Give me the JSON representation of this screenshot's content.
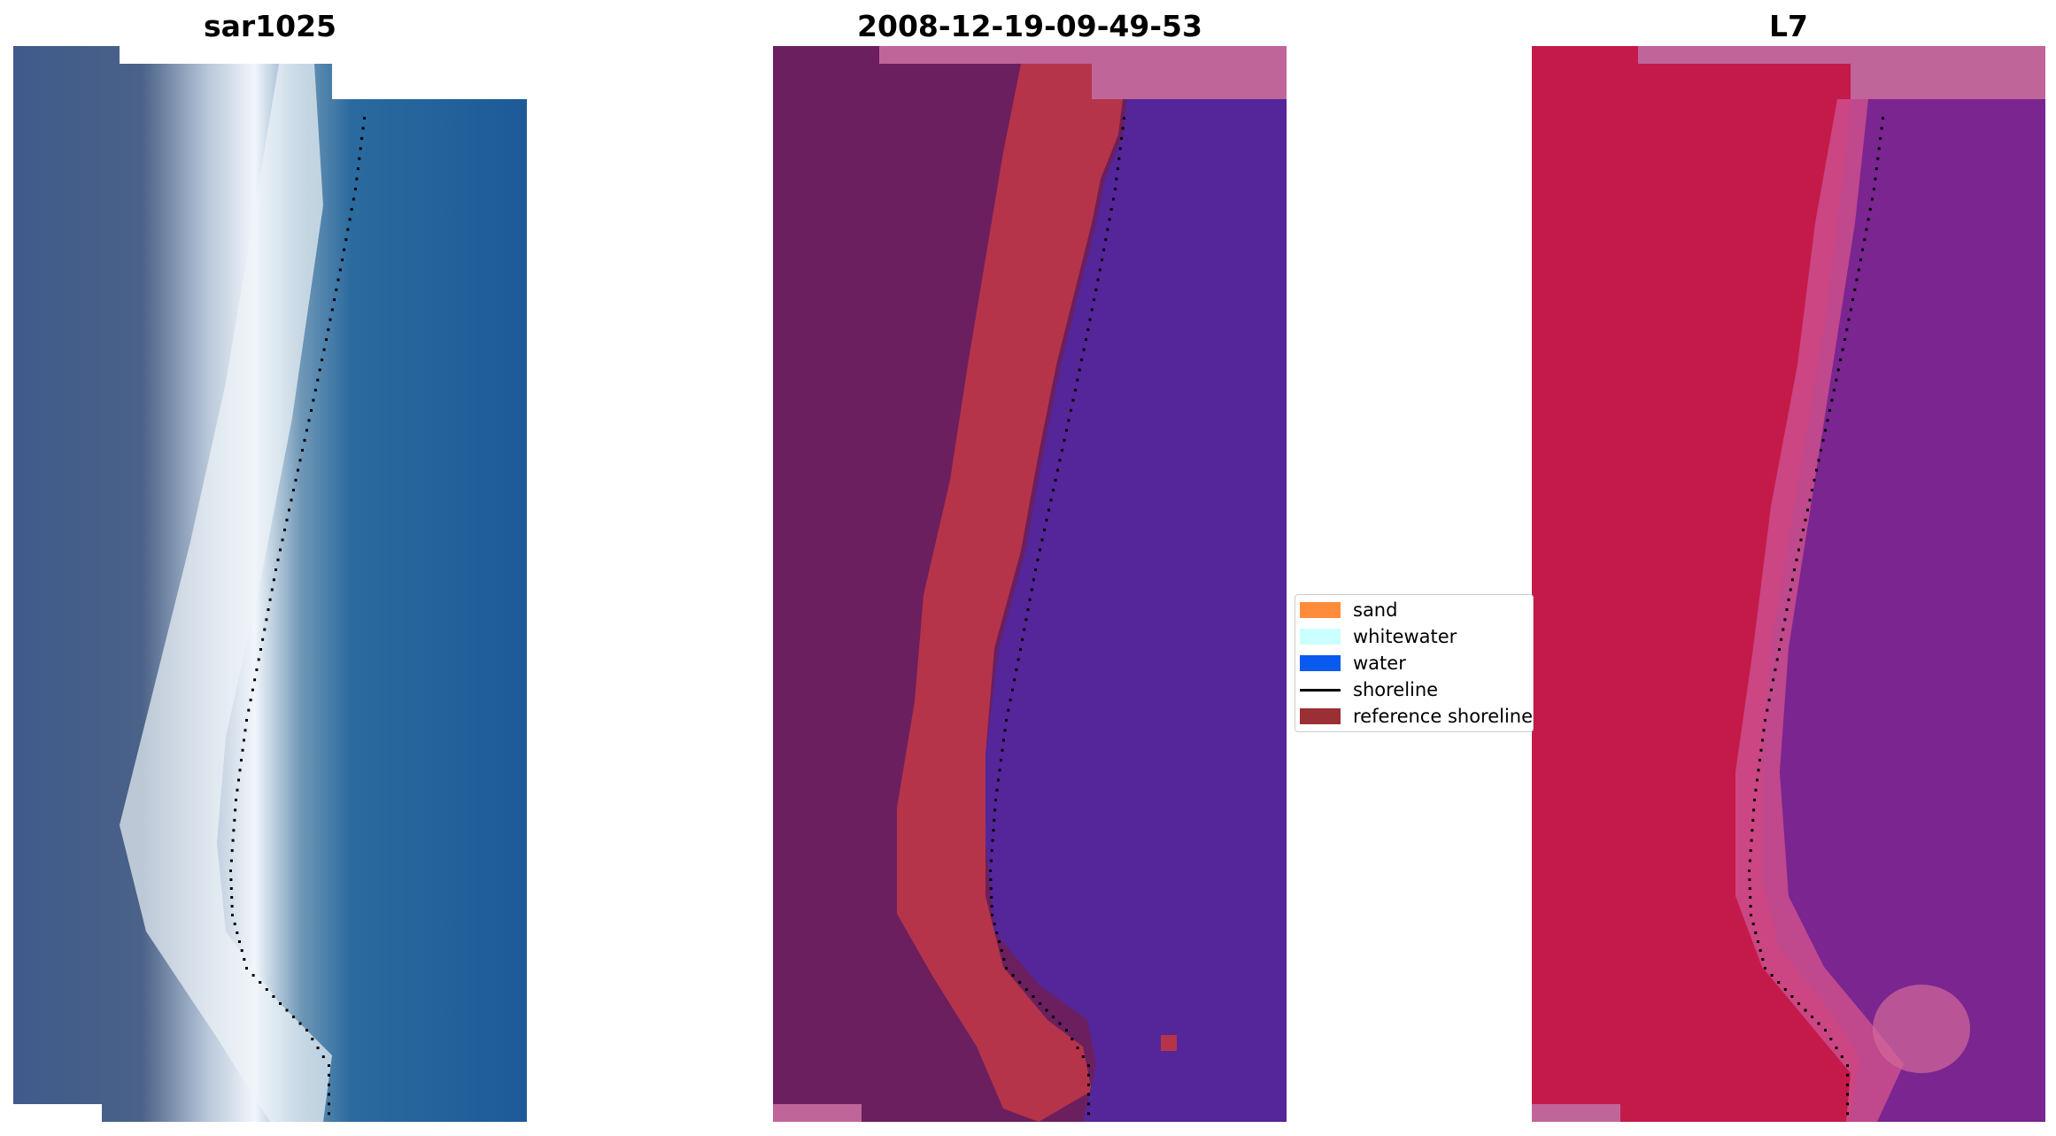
{
  "panels": [
    {
      "title": "sar1025",
      "kind": "rgb"
    },
    {
      "title": "2008-12-19-09-49-53",
      "kind": "classified"
    },
    {
      "title": "L7",
      "kind": "falsecolor"
    }
  ],
  "legend": {
    "items": [
      {
        "label": "sand",
        "color": "#ff8c3a",
        "type": "patch"
      },
      {
        "label": "whitewater",
        "color": "#ccffff",
        "type": "patch"
      },
      {
        "label": "water",
        "color": "#0a5af0",
        "type": "patch"
      },
      {
        "label": "shoreline",
        "color": "#000000",
        "type": "line"
      },
      {
        "label": "reference shoreline",
        "color": "#9a2f36",
        "type": "patch"
      }
    ]
  },
  "colors": {
    "rgb_land": "#3f5a8c",
    "rgb_water": "#1f5b96",
    "rgb_surf": "#e8eef6",
    "class_land": "#6b1f5e",
    "class_sand": "#b5344a",
    "class_water": "#55259a",
    "class_nodata": "#c0659a",
    "fc_land": "#c41a4a",
    "fc_water": "#7a2590",
    "fc_nodata": "#c0659a",
    "shoreline_dots": "#000000"
  }
}
